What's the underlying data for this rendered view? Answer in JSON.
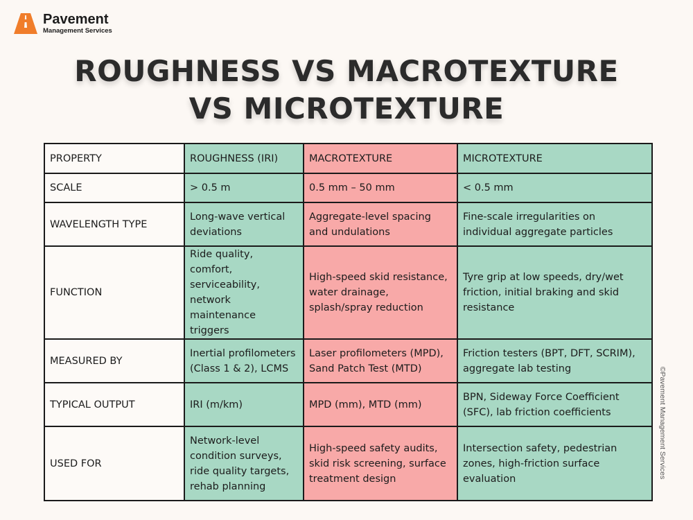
{
  "brand": {
    "name": "Pavement",
    "subtitle": "Management Services"
  },
  "title": {
    "line1": "ROUGHNESS VS MACROTEXTURE",
    "line2": "VS MICROTEXTURE"
  },
  "colors": {
    "roughness_column": "#a8d8c4",
    "macrotexture_column": "#f8a9a8",
    "microtexture_column": "#a8d8c4",
    "logo_orange": "#f07d2a"
  },
  "table": {
    "headers": [
      "PROPERTY",
      "ROUGHNESS (IRI)",
      "MACROTEXTURE",
      "MICROTEXTURE"
    ],
    "rows": [
      [
        "SCALE",
        "> 0.5 m",
        "0.5 mm – 50 mm",
        "< 0.5 mm"
      ],
      [
        "WAVELENGTH TYPE",
        "Long-wave vertical deviations",
        "Aggregate-level spacing and undulations",
        "Fine-scale irregularities on individual aggregate particles"
      ],
      [
        "FUNCTION",
        "Ride quality, comfort, serviceability, network maintenance triggers",
        "High-speed skid resistance, water drainage, splash/spray reduction",
        "Tyre grip at low speeds, dry/wet friction, initial braking and skid resistance"
      ],
      [
        "MEASURED BY",
        "Inertial profilometers (Class 1 & 2), LCMS",
        "Laser profilometers (MPD), Sand Patch Test (MTD)",
        "Friction testers (BPT, DFT, SCRIM), aggregate lab testing"
      ],
      [
        "TYPICAL OUTPUT",
        "IRI (m/km)",
        "MPD (mm), MTD (mm)",
        "BPN, Sideway Force Coefficient (SFC), lab friction coefficients"
      ],
      [
        "USED FOR",
        "Network-level condition surveys, ride quality targets, rehab planning",
        "High-speed safety audits, skid risk screening, surface treatment design",
        "Intersection safety, pedestrian zones, high-friction surface evaluation"
      ]
    ]
  },
  "copyright": "©Pavement Management Services"
}
